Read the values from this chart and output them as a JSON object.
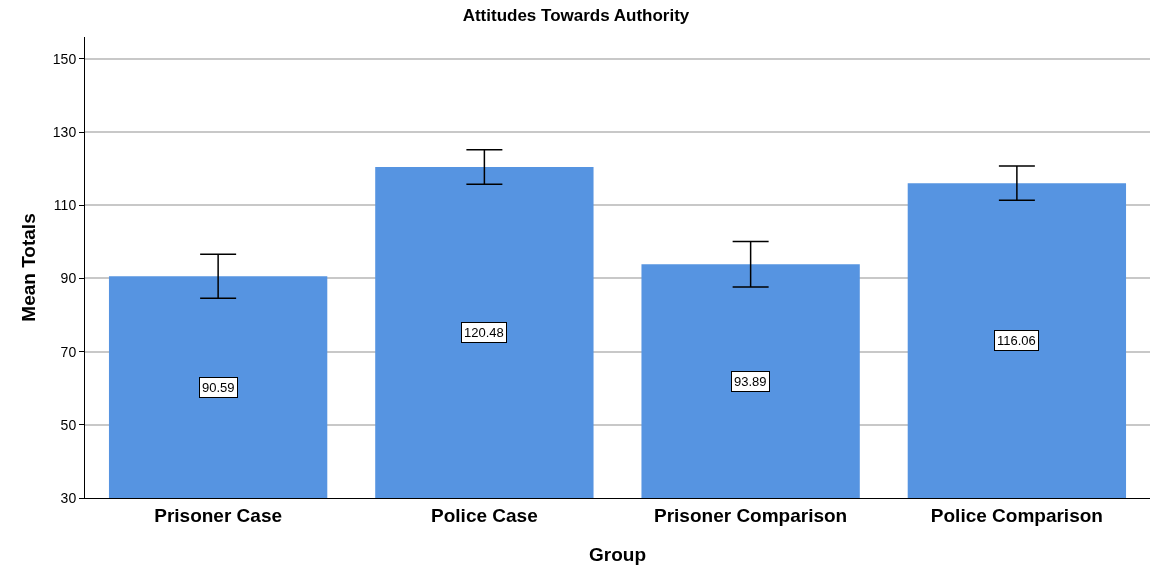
{
  "chart_data": {
    "type": "bar",
    "title": "Attitudes Towards Authority",
    "xlabel": "Group",
    "ylabel": "Mean Totals",
    "categories": [
      "Prisoner Case",
      "Police Case",
      "Prisoner Comparison",
      "Police Comparison"
    ],
    "values": [
      90.59,
      120.48,
      93.89,
      116.06
    ],
    "errors": [
      6.0,
      4.7,
      6.2,
      4.7
    ],
    "color": "#5694e1",
    "ylim": [
      30,
      156
    ],
    "yticks": [
      30,
      50,
      70,
      90,
      110,
      130,
      150
    ],
    "grid": "y",
    "data_labels": true,
    "legend": false
  }
}
